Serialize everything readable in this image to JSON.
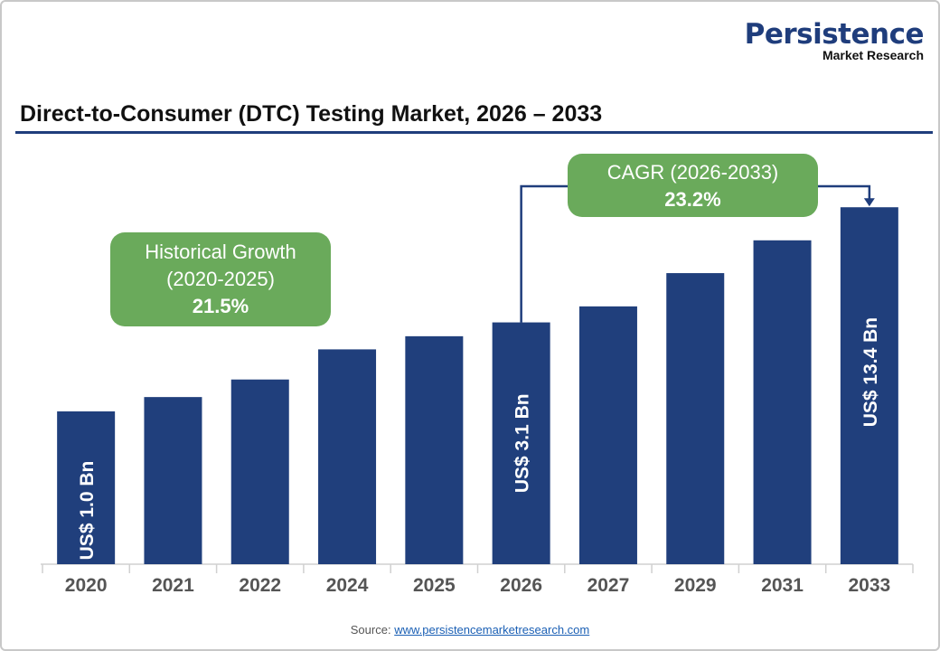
{
  "logo": {
    "line1": "Persistence",
    "line2": "Market Research"
  },
  "chart_data": {
    "type": "bar",
    "title": "Direct-to-Consumer (DTC) Testing Market, 2026 – 2033",
    "categories": [
      "2020",
      "2021",
      "2022",
      "2024",
      "2025",
      "2026",
      "2027",
      "2029",
      "2031",
      "2033"
    ],
    "values": [
      1.0,
      1.2,
      1.5,
      2.2,
      2.6,
      3.1,
      3.8,
      5.8,
      8.8,
      13.4
    ],
    "unit": "US$ Bn",
    "data_labels": [
      {
        "category": "2020",
        "text": "US$ 1.0 Bn"
      },
      {
        "category": "2026",
        "text": "US$ 3.1 Bn"
      },
      {
        "category": "2033",
        "text": "US$ 13.4 Bn"
      }
    ],
    "y_axis_visible": false,
    "grid": false,
    "bar_color": "#203f7c",
    "annotations": [
      {
        "lines": [
          "Historical Growth",
          "(2020-2025)"
        ],
        "value": "21.5%",
        "color": "#6aaa5b"
      },
      {
        "lines": [
          "CAGR (2026-2033)"
        ],
        "value": "23.2%",
        "color": "#6aaa5b",
        "from": "2026",
        "to": "2033"
      }
    ]
  },
  "source": {
    "label": "Source:",
    "link": "www.persistencemarketresearch.com"
  }
}
